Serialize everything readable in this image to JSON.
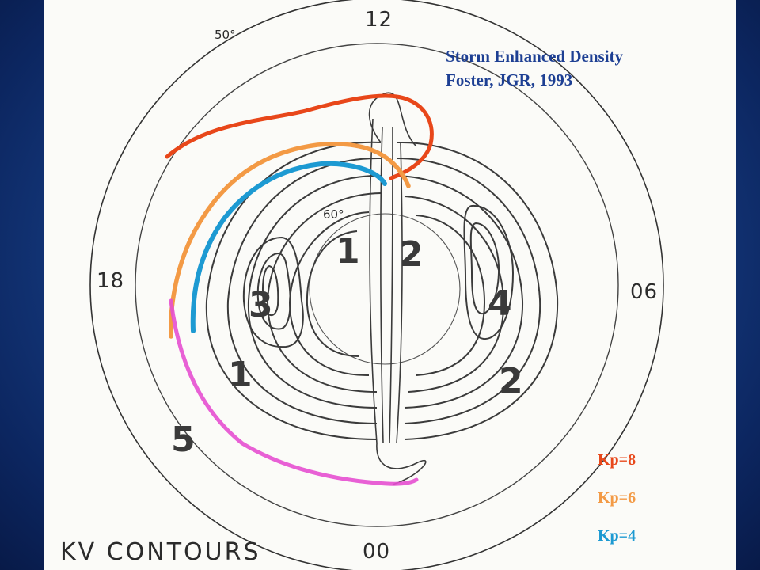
{
  "figure": {
    "caption_line1": "Storm Enhanced Density",
    "caption_line2": "Foster, JGR, 1993",
    "plot_title": "KV CONTOURS",
    "mlt_labels": {
      "noon": "12",
      "dusk": "18",
      "dawn": "06",
      "midnight": "00"
    },
    "latitude_labels": {
      "outer": "50°",
      "inner": "60°"
    },
    "contour_values": [
      "1",
      "2",
      "3",
      "4",
      "1",
      "2",
      "5"
    ]
  },
  "legend": {
    "items": [
      {
        "label": "Kp=8",
        "color": "#e8471a"
      },
      {
        "label": "Kp=6",
        "color": "#f39a45"
      },
      {
        "label": "Kp=4",
        "color": "#1d9ad2"
      }
    ]
  },
  "colors": {
    "kp8": "#e8471a",
    "kp6": "#f39a45",
    "kp4": "#1d9ad2",
    "trough": "#e64fd0",
    "text_blue": "#1d3f93"
  }
}
